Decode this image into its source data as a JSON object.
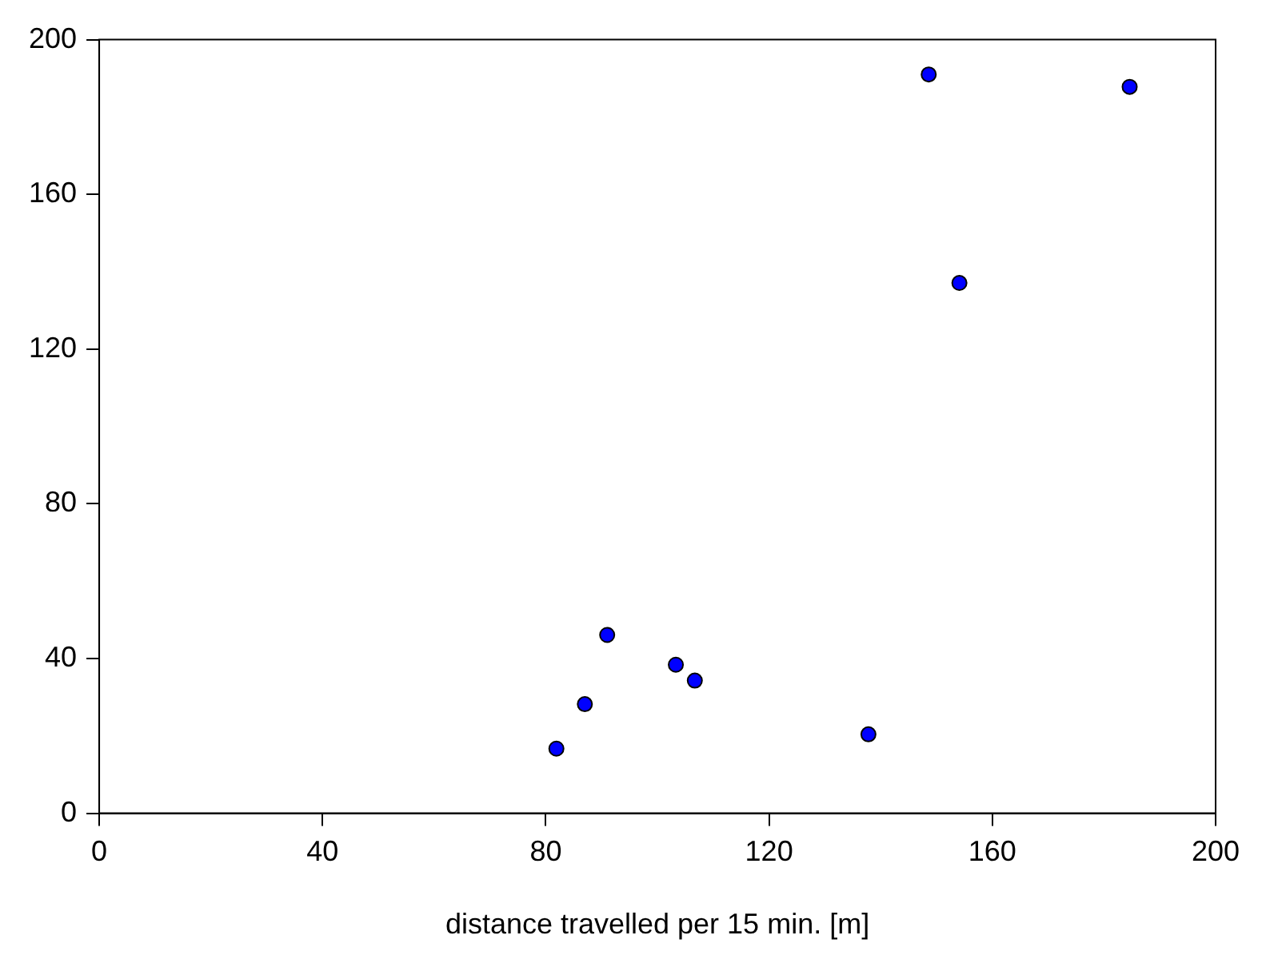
{
  "chart_data": {
    "type": "scatter",
    "xlabel": "distance travelled per 15 min. [m]",
    "x": [
      81.9,
      87.0,
      91.0,
      103.3,
      106.7,
      137.8,
      148.6,
      154.1,
      184.6
    ],
    "values": [
      16.7,
      28.2,
      46.1,
      38.4,
      34.3,
      20.4,
      191.0,
      137.1,
      187.8
    ],
    "color": "#0000ff",
    "marker": "circle",
    "xlim": [
      0,
      200
    ],
    "xticks": [
      0,
      40,
      80,
      120,
      160,
      200
    ],
    "ylim": [
      0,
      200
    ],
    "yticks": [
      0,
      40,
      80,
      120,
      160,
      200
    ],
    "grid": false,
    "legend": false
  }
}
